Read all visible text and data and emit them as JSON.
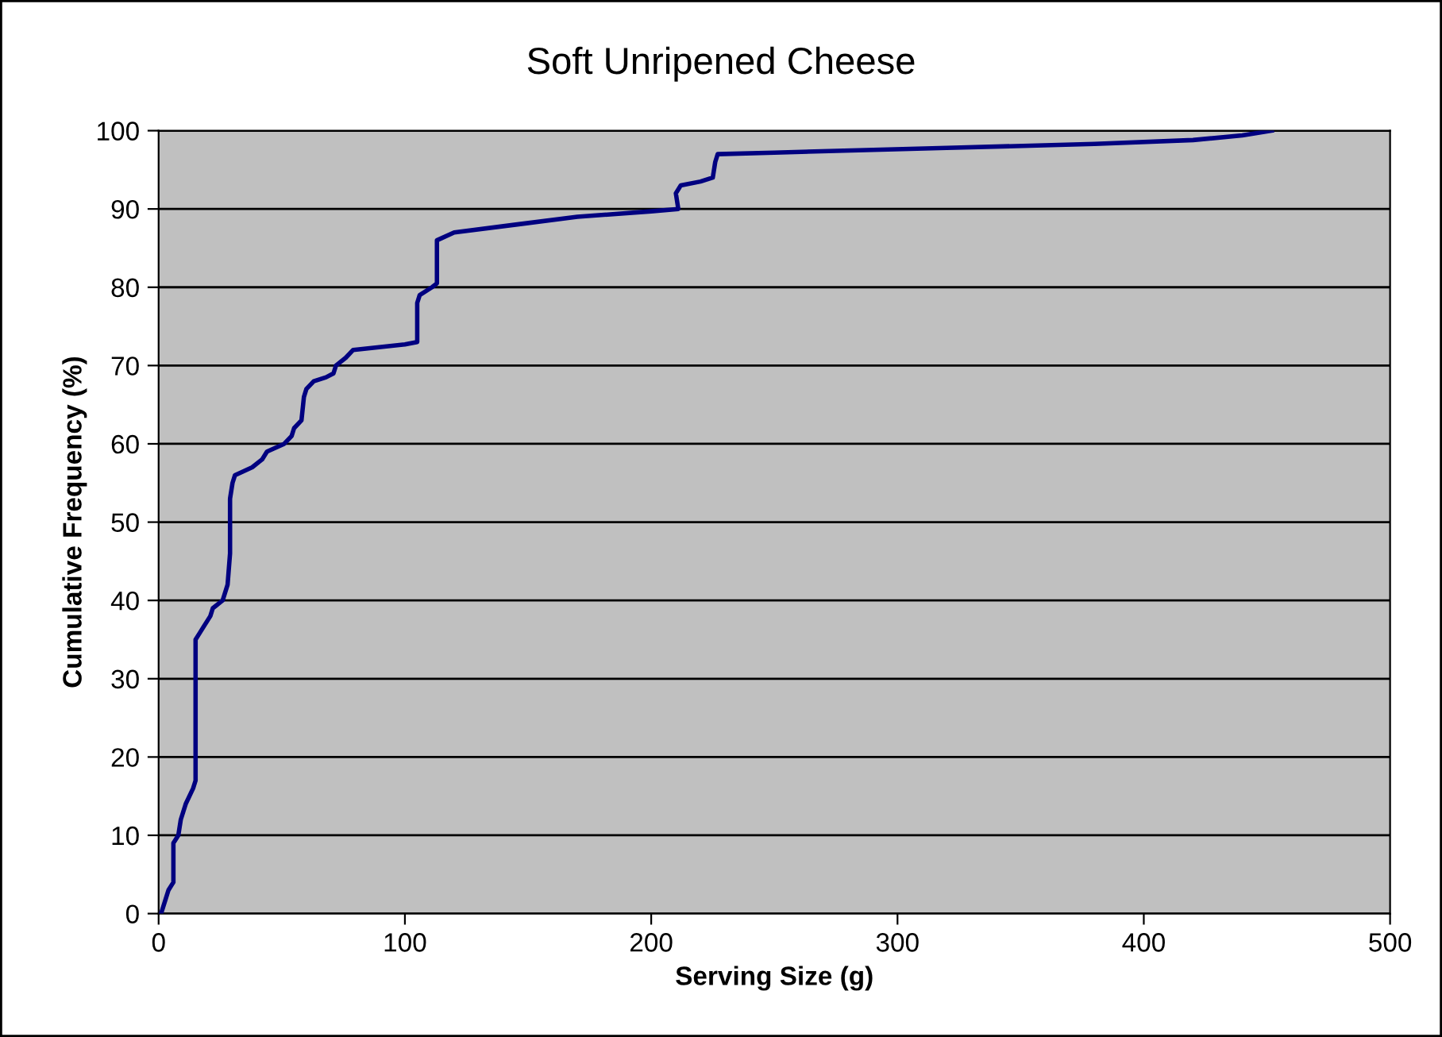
{
  "chart_data": {
    "type": "line",
    "title": "Soft Unripened Cheese",
    "xlabel": "Serving Size (g)",
    "ylabel": "Cumulative Frequency (%)",
    "x": [
      1,
      3,
      4,
      6,
      6,
      8,
      9,
      11,
      14,
      15,
      15,
      17,
      21,
      22,
      26,
      28,
      29,
      29,
      30,
      31,
      38,
      42,
      44,
      51,
      54,
      55,
      58,
      59,
      60,
      63,
      68,
      71,
      72,
      76,
      79,
      100,
      105,
      105,
      106,
      111,
      113,
      113,
      120,
      145,
      170,
      200,
      211,
      210,
      212,
      220,
      225,
      226,
      227,
      250,
      320,
      380,
      420,
      440,
      452
    ],
    "series": [
      {
        "color": "#000080",
        "values": [
          0,
          2,
          3,
          4,
          9,
          10,
          12,
          14,
          16,
          17,
          35,
          36,
          38,
          39,
          40,
          42,
          46,
          53,
          55,
          56,
          57,
          58,
          59,
          60,
          61,
          62,
          63,
          66,
          67,
          68,
          68.5,
          69,
          70,
          71,
          72,
          72.7,
          73,
          78,
          79,
          80,
          80.5,
          86,
          87,
          88,
          89,
          89.7,
          90,
          92,
          93,
          93.5,
          94,
          96,
          97,
          97.2,
          97.8,
          98.3,
          98.8,
          99.4,
          100
        ]
      }
    ],
    "xlim": [
      0,
      500
    ],
    "xticks": [
      0,
      100,
      200,
      300,
      400,
      500
    ],
    "ylim": [
      0,
      100
    ],
    "yticks": [
      0,
      10,
      20,
      30,
      40,
      50,
      60,
      70,
      80,
      90,
      100
    ],
    "grid": "y",
    "marker": "none",
    "line_style": "solid"
  }
}
